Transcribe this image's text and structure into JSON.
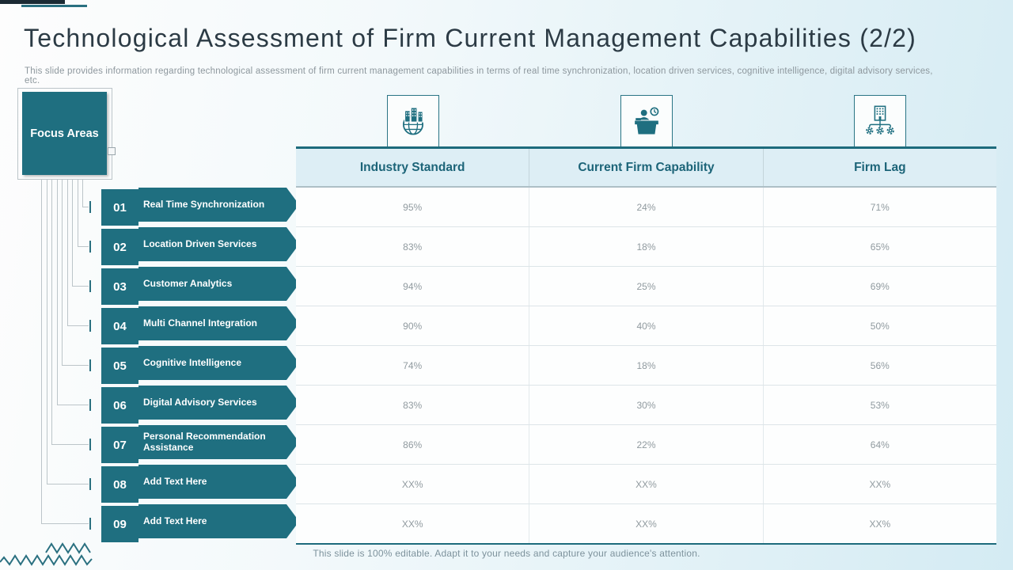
{
  "slide": {
    "title": "Technological Assessment of Firm Current Management Capabilities (2/2)",
    "subtitle": "This slide provides information regarding technological assessment of firm current management capabilities in terms of real time synchronization, location driven services, cognitive intelligence, digital advisory services, etc.",
    "footer": "This slide is 100% editable. Adapt it to your needs and capture your audience's attention."
  },
  "focus": {
    "box_label": "Focus Areas",
    "items": [
      {
        "num": "01",
        "label": "Real Time Synchronization"
      },
      {
        "num": "02",
        "label": "Location Driven Services"
      },
      {
        "num": "03",
        "label": "Customer Analytics"
      },
      {
        "num": "04",
        "label": "Multi Channel Integration"
      },
      {
        "num": "05",
        "label": "Cognitive Intelligence"
      },
      {
        "num": "06",
        "label": "Digital Advisory Services"
      },
      {
        "num": "07",
        "label": "Personal Recommendation Assistance"
      },
      {
        "num": "08",
        "label": "Add Text Here"
      },
      {
        "num": "09",
        "label": "Add Text Here"
      }
    ]
  },
  "table": {
    "columns": [
      "Industry Standard",
      "Current Firm Capability",
      "Firm Lag"
    ],
    "icons": [
      "globe-buildings-icon",
      "person-desk-clock-icon",
      "building-network-icon"
    ],
    "rows": [
      [
        "95%",
        "24%",
        "71%"
      ],
      [
        "83%",
        "18%",
        "65%"
      ],
      [
        "94%",
        "25%",
        "69%"
      ],
      [
        "90%",
        "40%",
        "50%"
      ],
      [
        "74%",
        "18%",
        "56%"
      ],
      [
        "83%",
        "30%",
        "53%"
      ],
      [
        "86%",
        "22%",
        "64%"
      ],
      [
        "XX%",
        "XX%",
        "XX%"
      ],
      [
        "XX%",
        "XX%",
        "XX%"
      ]
    ]
  },
  "colors": {
    "teal": "#1f6f80",
    "dark_navy": "#1b2a33",
    "header_bg": "#ddeef5",
    "title_text": "#2c3b45",
    "cell_text": "#909a9f"
  }
}
